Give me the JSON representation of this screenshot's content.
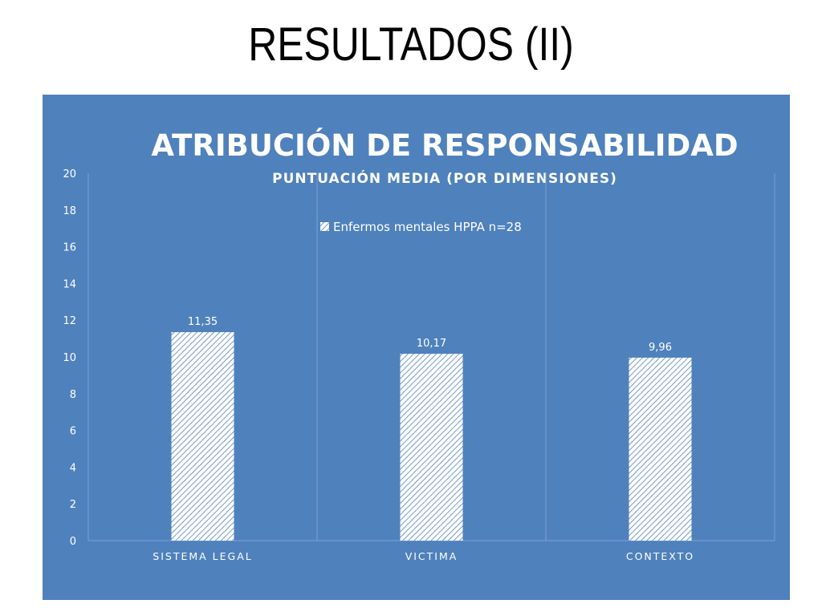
{
  "slide": {
    "title": "RESULTADOS (II)"
  },
  "colors": {
    "panel": "#4f81bd",
    "bar_fill": "#ffffff",
    "bar_hatch": "#4f81bd",
    "text": "#ffffff",
    "gridline": "#7ea1cf"
  },
  "chart_data": {
    "type": "bar",
    "title": "ATRIBUCIÓN DE RESPONSABILIDAD",
    "subtitle": "PUNTUACIÓN MEDIA (POR DIMENSIONES)",
    "categories": [
      "SISTEMA LEGAL",
      "VICTIMA",
      "CONTEXTO"
    ],
    "series": [
      {
        "name": "Enfermos mentales HPPA n=28",
        "values": [
          11.35,
          10.17,
          9.96
        ]
      }
    ],
    "data_labels": [
      "11,35",
      "10,17",
      "9,96"
    ],
    "ylim": [
      0,
      20
    ],
    "yticks": [
      0,
      2,
      4,
      6,
      8,
      10,
      12,
      14,
      16,
      18,
      20
    ],
    "legend_position": "top-center",
    "grid": "vertical-category-separators",
    "bar_pattern": "diagonal-hatch"
  }
}
